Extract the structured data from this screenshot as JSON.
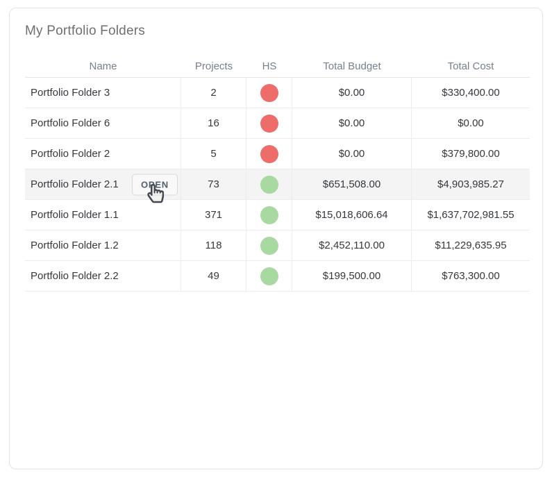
{
  "page": {
    "title": "My Portfolio Folders"
  },
  "table": {
    "columns": [
      {
        "key": "name",
        "label": "Name"
      },
      {
        "key": "projects",
        "label": "Projects"
      },
      {
        "key": "hs",
        "label": "HS"
      },
      {
        "key": "budget",
        "label": "Total Budget"
      },
      {
        "key": "cost",
        "label": "Total Cost"
      }
    ],
    "rows": [
      {
        "name": "Portfolio Folder 3",
        "projects": "2",
        "hs": "red",
        "budget": "$0.00",
        "cost": "$330,400.00"
      },
      {
        "name": "Portfolio Folder 6",
        "projects": "16",
        "hs": "red",
        "budget": "$0.00",
        "cost": "$0.00"
      },
      {
        "name": "Portfolio Folder 2",
        "projects": "5",
        "hs": "red",
        "budget": "$0.00",
        "cost": "$379,800.00"
      },
      {
        "name": "Portfolio Folder 2.1",
        "projects": "73",
        "hs": "green",
        "budget": "$651,508.00",
        "cost": "$4,903,985.27",
        "hovered": true,
        "action_label": "OPEN"
      },
      {
        "name": "Portfolio Folder 1.1",
        "projects": "371",
        "hs": "green",
        "budget": "$15,018,606.64",
        "cost": "$1,637,702,981.55"
      },
      {
        "name": "Portfolio Folder 1.2",
        "projects": "118",
        "hs": "green",
        "budget": "$2,452,110.00",
        "cost": "$11,229,635.95"
      },
      {
        "name": "Portfolio Folder 2.2",
        "projects": "49",
        "hs": "green",
        "budget": "$199,500.00",
        "cost": "$763,300.00"
      }
    ],
    "health_colors": {
      "red": "#ee6c69",
      "green": "#a8d9a0"
    }
  }
}
